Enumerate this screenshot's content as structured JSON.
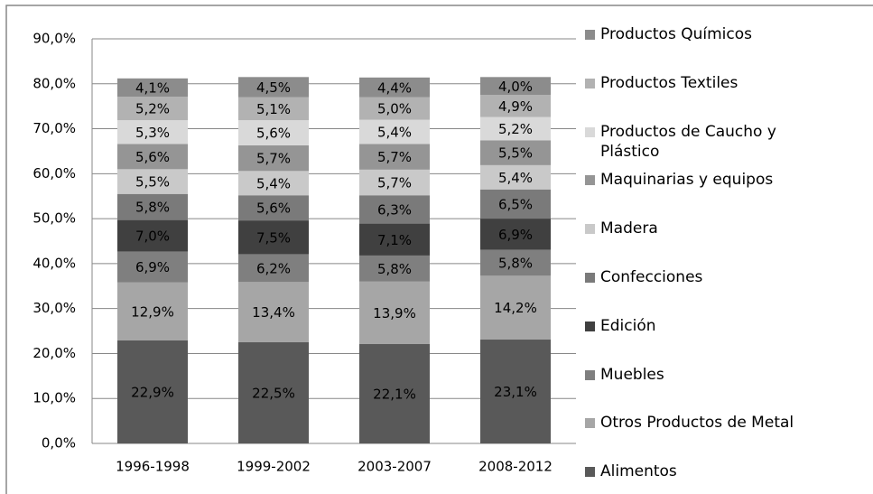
{
  "chart_data": {
    "type": "stacked-bar",
    "categories": [
      "1996-1998",
      "1999-2002",
      "2003-2007",
      "2008-2012"
    ],
    "series": [
      {
        "name": "Alimentos",
        "color": "#595959",
        "values": [
          22.9,
          22.5,
          22.1,
          23.1
        ],
        "value_labels": [
          "22,9%",
          "22,5%",
          "22,1%",
          "23,1%"
        ]
      },
      {
        "name": "Otros Productos de Metal",
        "color": "#a6a6a6",
        "values": [
          12.9,
          13.4,
          13.9,
          14.2
        ],
        "value_labels": [
          "12,9%",
          "13,4%",
          "13,9%",
          "14,2%"
        ]
      },
      {
        "name": "Muebles",
        "color": "#7f7f7f",
        "values": [
          6.9,
          6.2,
          5.8,
          5.8
        ],
        "value_labels": [
          "6,9%",
          "6,2%",
          "5,8%",
          "5,8%"
        ]
      },
      {
        "name": "Edición",
        "color": "#404040",
        "values": [
          7.0,
          7.5,
          7.1,
          6.9
        ],
        "value_labels": [
          "7,0%",
          "7,5%",
          "7,1%",
          "6,9%"
        ]
      },
      {
        "name": "Confecciones",
        "color": "#7a7a7a",
        "values": [
          5.8,
          5.6,
          6.3,
          6.5
        ],
        "value_labels": [
          "5,8%",
          "5,6%",
          "6,3%",
          "6,5%"
        ]
      },
      {
        "name": "Madera",
        "color": "#c9c9c9",
        "values": [
          5.5,
          5.4,
          5.7,
          5.4
        ],
        "value_labels": [
          "5,5%",
          "5,4%",
          "5,7%",
          "5,4%"
        ]
      },
      {
        "name": "Maquinarias y equipos",
        "color": "#959595",
        "values": [
          5.6,
          5.7,
          5.7,
          5.5
        ],
        "value_labels": [
          "5,6%",
          "5,7%",
          "5,7%",
          "5,5%"
        ]
      },
      {
        "name": "Productos de Caucho y Plástico",
        "color": "#d9d9d9",
        "values": [
          5.3,
          5.6,
          5.4,
          5.2
        ],
        "value_labels": [
          "5,3%",
          "5,6%",
          "5,4%",
          "5,2%"
        ]
      },
      {
        "name": "Productos Textiles",
        "color": "#b2b2b2",
        "values": [
          5.2,
          5.1,
          5.0,
          4.9
        ],
        "value_labels": [
          "5,2%",
          "5,1%",
          "5,0%",
          "4,9%"
        ]
      },
      {
        "name": "Productos Químicos",
        "color": "#8c8c8c",
        "values": [
          4.1,
          4.5,
          4.4,
          4.0
        ],
        "value_labels": [
          "4,1%",
          "4,5%",
          "4,4%",
          "4,0%"
        ]
      }
    ],
    "ylim": [
      0,
      90
    ],
    "yticks": [
      {
        "value": 0,
        "label": "0,0%"
      },
      {
        "value": 10,
        "label": "10,0%"
      },
      {
        "value": 20,
        "label": "20,0%"
      },
      {
        "value": 30,
        "label": "30,0%"
      },
      {
        "value": 40,
        "label": "40,0%"
      },
      {
        "value": 50,
        "label": "50,0%"
      },
      {
        "value": 60,
        "label": "60,0%"
      },
      {
        "value": 70,
        "label": "70,0%"
      },
      {
        "value": 80,
        "label": "80,0%"
      },
      {
        "value": 90,
        "label": "90,0%"
      }
    ],
    "grid": true,
    "legend": "right"
  }
}
